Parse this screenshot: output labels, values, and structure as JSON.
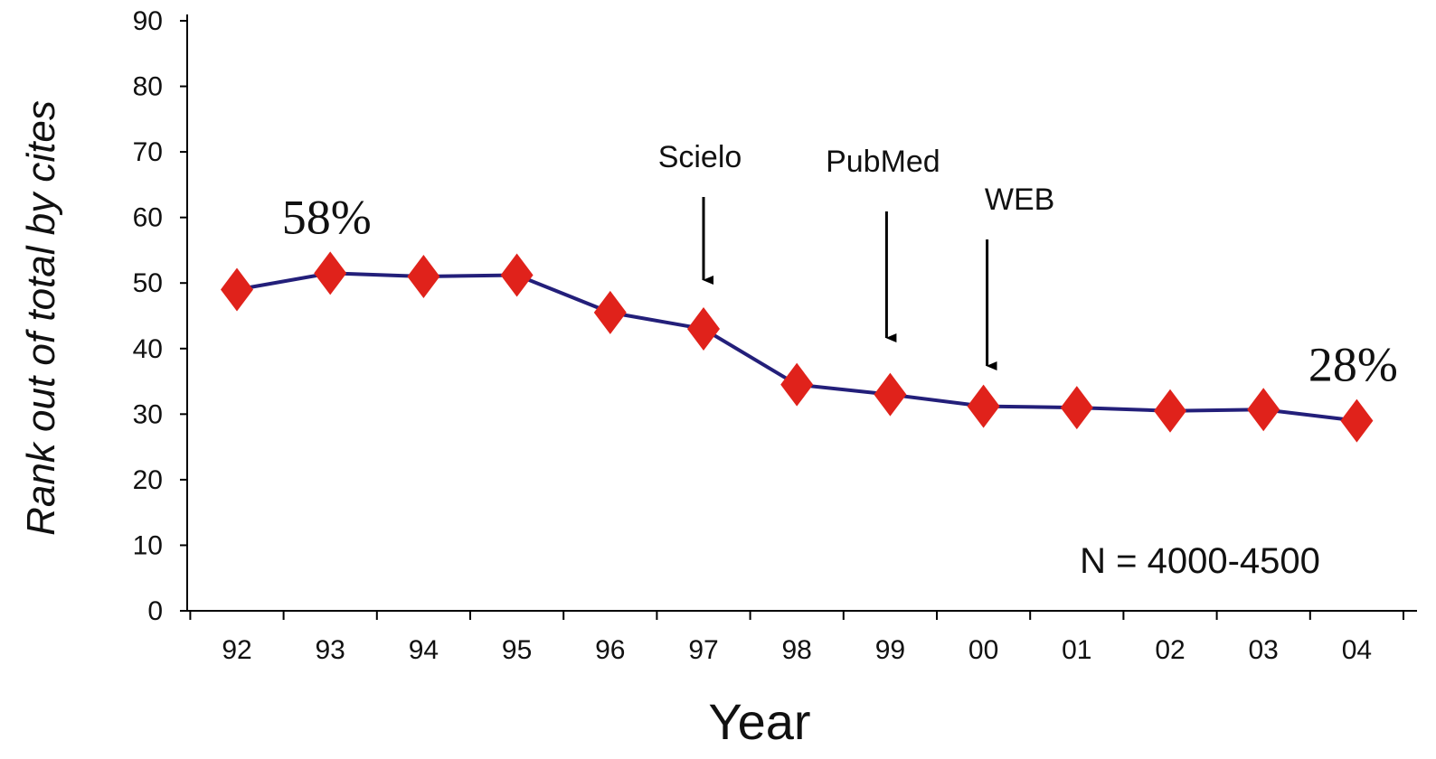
{
  "chart_data": {
    "type": "line",
    "xlabel": "Year",
    "ylabel": "Rank out of total by cites",
    "ylim": [
      0,
      90
    ],
    "y_ticks": [
      0,
      10,
      20,
      30,
      40,
      50,
      60,
      70,
      80,
      90
    ],
    "categories": [
      "92",
      "93",
      "94",
      "95",
      "96",
      "97",
      "98",
      "99",
      "00",
      "01",
      "02",
      "03",
      "04"
    ],
    "series": [
      {
        "values": [
          49,
          51.5,
          51,
          51.2,
          45.5,
          43,
          34.5,
          33,
          31.2,
          31,
          30.5,
          30.7,
          29
        ],
        "line_color": "#231f7a",
        "marker": "diamond",
        "marker_color": "#e0221b"
      }
    ],
    "annotations": [
      {
        "text": "58%",
        "category": "93",
        "kind": "percent"
      },
      {
        "text": "28%",
        "category": "04",
        "kind": "percent"
      },
      {
        "text": "Scielo",
        "category": "97",
        "kind": "event"
      },
      {
        "text": "PubMed",
        "category": "99",
        "kind": "event"
      },
      {
        "text": "WEB",
        "category": "00",
        "kind": "event"
      }
    ],
    "note": "N = 4000-4500",
    "grid": false,
    "legend": "none"
  }
}
